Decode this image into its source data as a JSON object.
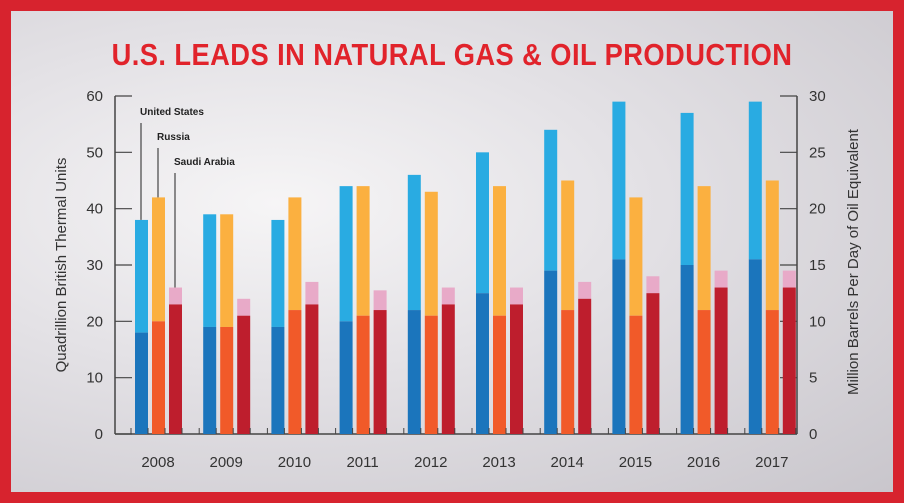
{
  "chart_data": {
    "type": "bar",
    "stacked": true,
    "title": "U.S. LEADS IN NATURAL GAS & OIL PRODUCTION",
    "ylabel": "Quadrillion British Thermal Units",
    "y2label": "Million Barrels Per Day of Oil Equivalent",
    "ylim": [
      0,
      60
    ],
    "y2lim": [
      0,
      30
    ],
    "yticks": [
      0,
      10,
      20,
      30,
      40,
      50,
      60
    ],
    "y2ticks": [
      0,
      5,
      10,
      15,
      20,
      25,
      30
    ],
    "categories": [
      "2008",
      "2009",
      "2010",
      "2011",
      "2012",
      "2013",
      "2014",
      "2015",
      "2016",
      "2017"
    ],
    "series": [
      {
        "name": "United States",
        "colors": {
          "bottom": "#1b75bc",
          "top": "#29abe2"
        },
        "bottom": [
          18,
          19,
          19,
          20,
          22,
          25,
          29,
          31,
          30,
          31
        ],
        "total": [
          38,
          39,
          38,
          44,
          46,
          50,
          54,
          59,
          57,
          59
        ]
      },
      {
        "name": "Russia",
        "colors": {
          "bottom": "#f15a29",
          "top": "#fbb040"
        },
        "bottom": [
          20,
          19,
          22,
          21,
          21,
          21,
          22,
          21,
          22,
          22
        ],
        "total": [
          42,
          39,
          42,
          44,
          43,
          44,
          45,
          42,
          44,
          45
        ]
      },
      {
        "name": "Saudi Arabia",
        "colors": {
          "bottom": "#be1e2d",
          "top": "#e8aac8"
        },
        "bottom": [
          23,
          21,
          23,
          22,
          23,
          23,
          24,
          25,
          26,
          26
        ],
        "total": [
          26,
          24,
          27,
          25.5,
          26,
          26,
          27,
          28,
          29,
          29
        ]
      }
    ]
  }
}
